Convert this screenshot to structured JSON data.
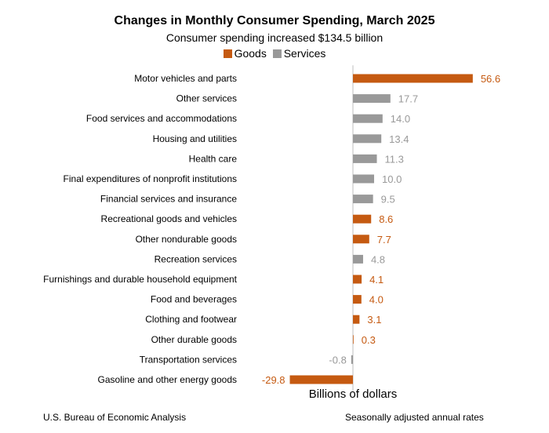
{
  "chart_data": {
    "type": "bar",
    "orientation": "horizontal",
    "title": "Changes in Monthly Consumer Spending, March 2025",
    "subtitle": "Consumer spending increased $134.5 billion",
    "xlabel": "Billions of dollars",
    "legend": [
      {
        "name": "Goods",
        "color": "#c55a11"
      },
      {
        "name": "Services",
        "color": "#999999"
      }
    ],
    "colors": {
      "goods": "#c55a11",
      "services": "#999999",
      "axis": "#bfbfbf",
      "label": "#000000"
    },
    "categories": [
      "Motor vehicles and parts",
      "Other services",
      "Food services and accommodations",
      "Housing and utilities",
      "Health care",
      "Final expenditures of nonprofit institutions",
      "Financial services and insurance",
      "Recreational goods and vehicles",
      "Other nondurable goods",
      "Recreation services",
      "Furnishings and durable household equipment",
      "Food and beverages",
      "Clothing and footwear",
      "Other durable goods",
      "Transportation services",
      "Gasoline and other energy goods"
    ],
    "values": [
      56.6,
      17.7,
      14.0,
      13.4,
      11.3,
      10.0,
      9.5,
      8.6,
      7.7,
      4.8,
      4.1,
      4.0,
      3.1,
      0.3,
      -0.8,
      -29.8
    ],
    "value_labels": [
      "56.6",
      "17.7",
      "14.0",
      "13.4",
      "11.3",
      "10.0",
      "9.5",
      "8.6",
      "7.7",
      "4.8",
      "4.1",
      "4.0",
      "3.1",
      "0.3",
      "-0.8",
      "-29.8"
    ],
    "group": [
      "Goods",
      "Services",
      "Services",
      "Services",
      "Services",
      "Services",
      "Services",
      "Goods",
      "Goods",
      "Services",
      "Goods",
      "Goods",
      "Goods",
      "Goods",
      "Services",
      "Goods"
    ],
    "xlim": [
      -30,
      80
    ]
  },
  "footer": {
    "source": "U.S. Bureau of Economic Analysis",
    "note": "Seasonally adjusted annual rates"
  }
}
